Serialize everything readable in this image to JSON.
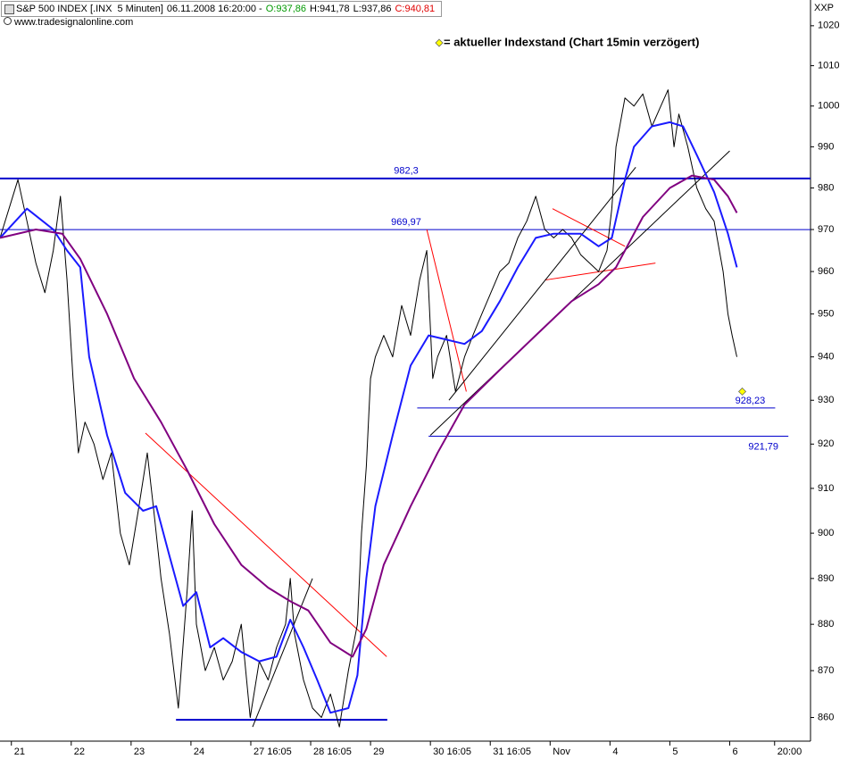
{
  "chart_data": {
    "type": "financial-line",
    "title": "S&P 500 INDEX [.INX  5 Minuten]",
    "datetime": "06.11.2008 16:20:00 -",
    "ohlc": [
      {
        "label": "O:937,86",
        "color": "#009900"
      },
      {
        "label": "H:941,78",
        "color": "#000000"
      },
      {
        "label": "L:937,86",
        "color": "#000000"
      },
      {
        "label": "C:940,81",
        "color": "#e00000"
      }
    ],
    "subtitle": "www.tradesignalonline.com",
    "legend": "= aktueller Indexstand (Chart 15min verzögert)",
    "axis_label": "XXP",
    "log_scale": true,
    "ylim": [
      855,
      1026.5
    ],
    "yticks": [
      860,
      870,
      880,
      890,
      900,
      910,
      920,
      930,
      940,
      950,
      960,
      970,
      980,
      990,
      1000,
      1010,
      1020
    ],
    "xlim": [
      -0.19,
      13.35
    ],
    "xticks": [
      {
        "value": 0,
        "label": "21"
      },
      {
        "value": 1,
        "label": "22"
      },
      {
        "value": 2,
        "label": "23"
      },
      {
        "value": 3,
        "label": "24"
      },
      {
        "value": 4,
        "label": "27 16:05"
      },
      {
        "value": 5,
        "label": "28 16:05"
      },
      {
        "value": 6,
        "label": "29"
      },
      {
        "value": 7,
        "label": "30 16:05"
      },
      {
        "value": 8,
        "label": "31 16:05"
      },
      {
        "value": 9,
        "label": "Nov"
      },
      {
        "value": 10,
        "label": "4"
      },
      {
        "value": 11,
        "label": "5"
      },
      {
        "value": 12,
        "label": "6"
      },
      {
        "value": 12.75,
        "label": "20:00"
      }
    ],
    "series": [
      {
        "color": "#000000",
        "width": 1,
        "x": [
          -0.19,
          -0.04,
          0.11,
          0.26,
          0.41,
          0.56,
          0.7,
          0.82,
          0.93,
          1.03,
          1.12,
          1.23,
          1.38,
          1.53,
          1.67,
          1.82,
          1.97,
          2.12,
          2.27,
          2.38,
          2.5,
          2.64,
          2.79,
          2.94,
          3.02,
          3.09,
          3.24,
          3.39,
          3.54,
          3.69,
          3.84,
          3.99,
          4.14,
          4.29,
          4.43,
          4.58,
          4.66,
          4.73,
          4.88,
          5.03,
          5.18,
          5.33,
          5.48,
          5.63,
          5.78,
          5.85,
          5.93,
          6.0,
          6.08,
          6.22,
          6.37,
          6.52,
          6.67,
          6.82,
          6.94,
          7.04,
          7.12,
          7.27,
          7.42,
          7.57,
          7.71,
          7.86,
          8.01,
          8.16,
          8.31,
          8.46,
          8.61,
          8.76,
          8.91,
          9.06,
          9.21,
          9.36,
          9.51,
          9.66,
          9.81,
          9.95,
          10.03,
          10.1,
          10.25,
          10.4,
          10.55,
          10.7,
          10.85,
          10.97,
          11.07,
          11.15,
          11.3,
          11.45,
          11.6,
          11.74,
          11.89,
          11.97,
          12.04,
          12.12
        ],
        "values": [
          968,
          975,
          982,
          972,
          962,
          955,
          965,
          978,
          958,
          935,
          918,
          925,
          920,
          912,
          918,
          900,
          893,
          905,
          918,
          905,
          890,
          878,
          862,
          888,
          905,
          880,
          870,
          875,
          868,
          872,
          880,
          860,
          872,
          868,
          875,
          880,
          890,
          878,
          868,
          862,
          860,
          865,
          858,
          870,
          880,
          900,
          915,
          935,
          940,
          945,
          940,
          952,
          945,
          958,
          965,
          935,
          940,
          945,
          932,
          940,
          945,
          950,
          955,
          960,
          962,
          968,
          972,
          978,
          970,
          968,
          970,
          968,
          964,
          962,
          960,
          965,
          975,
          990,
          1002,
          1000,
          1003,
          995,
          1000,
          1004,
          990,
          998,
          990,
          980,
          975,
          972,
          960,
          950,
          945,
          940
        ]
      },
      {
        "color": "#1a1aff",
        "width": 2,
        "x": [
          -0.19,
          0.26,
          0.7,
          0.93,
          1.15,
          1.3,
          1.6,
          1.9,
          2.2,
          2.42,
          2.64,
          2.87,
          3.09,
          3.32,
          3.54,
          3.84,
          4.14,
          4.43,
          4.66,
          4.88,
          5.11,
          5.33,
          5.63,
          5.78,
          5.93,
          6.08,
          6.37,
          6.67,
          6.97,
          7.27,
          7.57,
          7.86,
          8.16,
          8.46,
          8.76,
          9.06,
          9.51,
          9.81,
          10.03,
          10.25,
          10.4,
          10.7,
          11.0,
          11.22,
          11.45,
          11.74,
          11.97,
          12.12
        ],
        "values": [
          968,
          975,
          970,
          965,
          961,
          940,
          922,
          909,
          905,
          906,
          895,
          884,
          887,
          875,
          877,
          874,
          872,
          873,
          881,
          875,
          868,
          861,
          862,
          869,
          890,
          906,
          922,
          938,
          945,
          944,
          943,
          946,
          953,
          961,
          968,
          969,
          969,
          966,
          968,
          982,
          990,
          995,
          996,
          995,
          988,
          979,
          969,
          961
        ]
      },
      {
        "color": "#800080",
        "width": 2,
        "x": [
          -0.19,
          0.41,
          0.85,
          1.15,
          1.6,
          2.05,
          2.5,
          2.94,
          3.39,
          3.84,
          4.29,
          4.66,
          4.96,
          5.33,
          5.7,
          5.93,
          6.22,
          6.67,
          7.12,
          7.57,
          8.16,
          8.76,
          9.36,
          9.81,
          10.1,
          10.55,
          11.0,
          11.37,
          11.74,
          11.97,
          12.12
        ],
        "values": [
          968,
          970,
          969,
          963,
          950,
          935,
          925,
          914,
          902,
          893,
          888,
          885,
          883,
          876,
          873,
          879,
          893,
          906,
          918,
          929,
          937,
          945,
          953,
          957,
          961,
          973,
          980,
          983,
          982,
          978,
          974
        ]
      }
    ],
    "levels": [
      {
        "value": 982.3,
        "label": "982,3",
        "x": [
          -0.19,
          13.35
        ],
        "color": "#0000cc",
        "width": 2
      },
      {
        "value": 969.97,
        "label": "969,97",
        "x": [
          -0.19,
          13.35
        ],
        "color": "#0000cc",
        "width": 1
      },
      {
        "value": 928.23,
        "label": "928,23",
        "x": [
          6.78,
          12.76
        ],
        "color": "#0000cc",
        "width": 1
      },
      {
        "value": 921.79,
        "label": "921,79",
        "x": [
          6.97,
          12.98
        ],
        "color": "#0000cc",
        "width": 1
      }
    ],
    "trendlines": [
      {
        "x": [
          2.75,
          6.28
        ],
        "values": [
          859.5,
          859.5
        ],
        "color": "#0000cc",
        "width": 2
      },
      {
        "x": [
          2.24,
          6.27
        ],
        "values": [
          922.5,
          873
        ],
        "color": "#ff0000",
        "width": 1
      },
      {
        "x": [
          6.94,
          7.6
        ],
        "values": [
          970,
          932
        ],
        "color": "#ff0000",
        "width": 1
      },
      {
        "x": [
          9.04,
          10.25
        ],
        "values": [
          975,
          966
        ],
        "color": "#ff0000",
        "width": 1
      },
      {
        "x": [
          8.92,
          10.76
        ],
        "values": [
          958,
          962
        ],
        "color": "#ff0000",
        "width": 1
      },
      {
        "x": [
          4.03,
          5.03
        ],
        "values": [
          858,
          890
        ],
        "color": "#000000",
        "width": 1
      },
      {
        "x": [
          7.31,
          10.43
        ],
        "values": [
          930,
          985
        ],
        "color": "#000000",
        "width": 1
      },
      {
        "x": [
          7.0,
          12.0
        ],
        "values": [
          922,
          989
        ],
        "color": "#000000",
        "width": 1
      }
    ],
    "current": {
      "x": 12.21,
      "value": 932,
      "color": "#ffff00"
    }
  }
}
